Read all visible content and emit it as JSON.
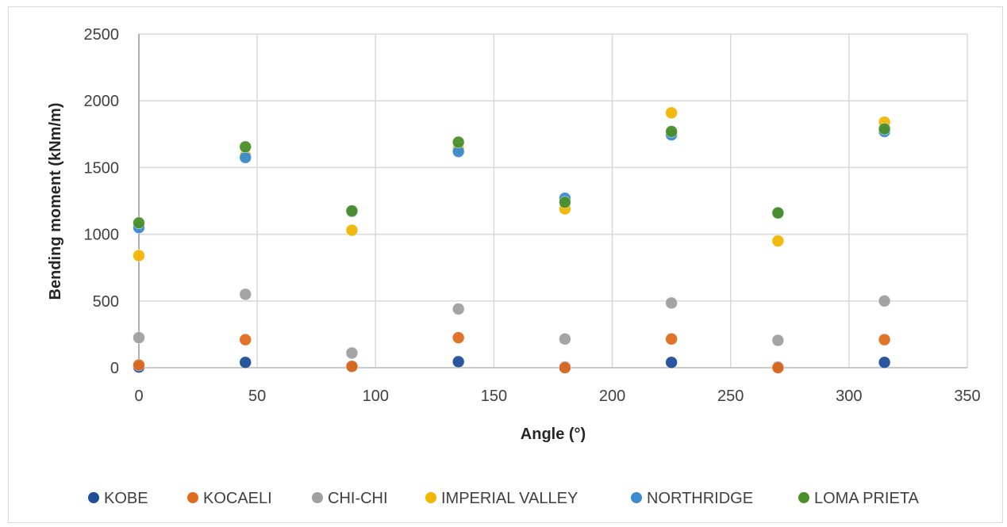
{
  "chart_data": {
    "type": "scatter",
    "title": "",
    "xlabel": "Angle (°)",
    "ylabel": "Bending moment (kNm/m)",
    "xlim": [
      0,
      350
    ],
    "ylim": [
      0,
      2500
    ],
    "xticks": [
      0,
      50,
      100,
      150,
      200,
      250,
      300,
      350
    ],
    "yticks": [
      0,
      500,
      1000,
      1500,
      2000,
      2500
    ],
    "grid": true,
    "legend_position": "bottom",
    "series": [
      {
        "name": "KOBE",
        "color": "#1f4e9a",
        "x": [
          0,
          45,
          90,
          135,
          180,
          225,
          270,
          315
        ],
        "y": [
          5,
          40,
          10,
          45,
          5,
          40,
          5,
          40
        ]
      },
      {
        "name": "KOCAELI",
        "color": "#e06c1f",
        "x": [
          0,
          45,
          90,
          135,
          180,
          225,
          270,
          315
        ],
        "y": [
          20,
          210,
          10,
          225,
          0,
          215,
          0,
          210
        ]
      },
      {
        "name": "CHI-CHI",
        "color": "#a0a0a0",
        "x": [
          0,
          45,
          90,
          135,
          180,
          225,
          270,
          315
        ],
        "y": [
          225,
          550,
          110,
          440,
          215,
          485,
          205,
          500
        ]
      },
      {
        "name": "IMPERIAL VALLEY",
        "color": "#f2b705",
        "x": [
          0,
          45,
          90,
          135,
          180,
          225,
          270,
          315
        ],
        "y": [
          840,
          1590,
          1030,
          1640,
          1190,
          1910,
          950,
          1840
        ]
      },
      {
        "name": "NORTHRIDGE",
        "color": "#3a8bd0",
        "x": [
          0,
          45,
          90,
          135,
          180,
          225,
          270,
          315
        ],
        "y": [
          1050,
          1575,
          1170,
          1620,
          1270,
          1745,
          1160,
          1770
        ]
      },
      {
        "name": "LOMA PRIETA",
        "color": "#4a8f2a",
        "x": [
          0,
          45,
          90,
          135,
          180,
          225,
          270,
          315
        ],
        "y": [
          1085,
          1655,
          1175,
          1690,
          1240,
          1770,
          1160,
          1790
        ]
      }
    ]
  }
}
